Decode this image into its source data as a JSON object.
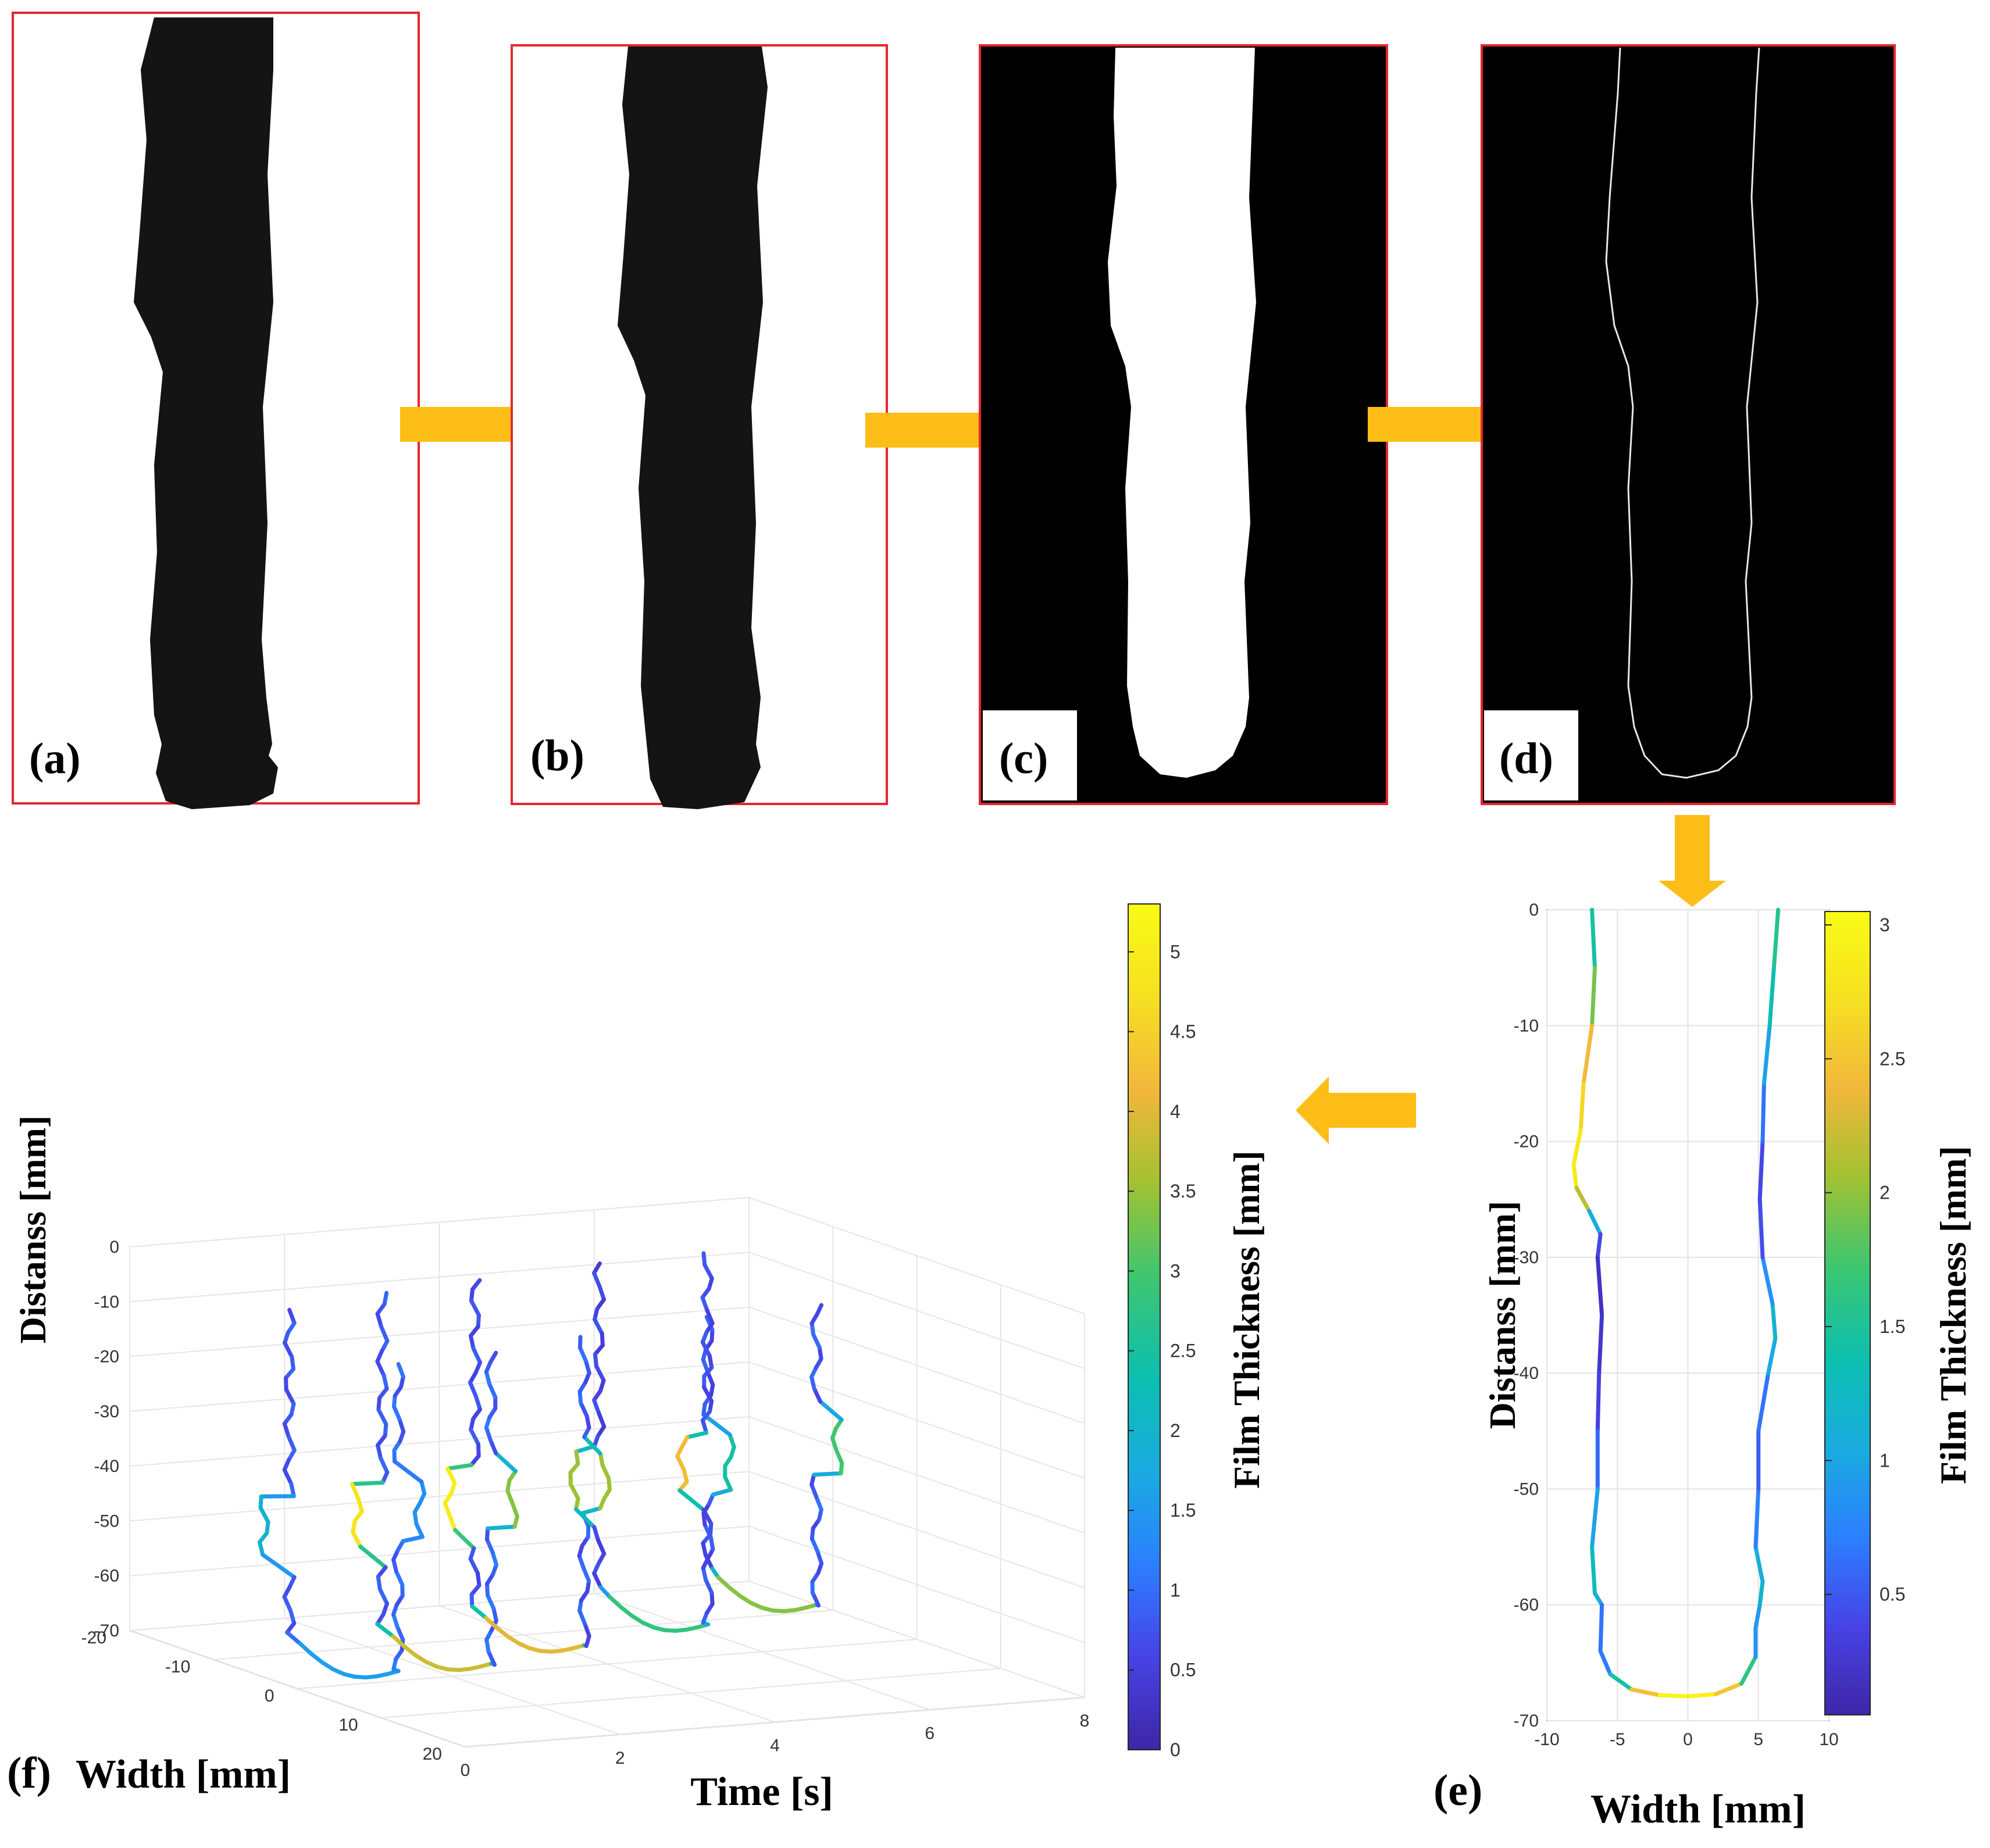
{
  "panels": {
    "a": {
      "label": "(a)"
    },
    "b": {
      "label": "(b)"
    },
    "c": {
      "label": "(c)"
    },
    "d": {
      "label": "(d)"
    },
    "e": {
      "label": "(e)"
    },
    "f": {
      "label": "(f)"
    }
  },
  "colors": {
    "frame": "#e8262b",
    "arrow": "#fdbd17",
    "dark_film": "#141414",
    "colormap": [
      "#3e26a8",
      "#4743e5",
      "#2c7fff",
      "#1aabe0",
      "#0cbfb0",
      "#3ec66f",
      "#a2c231",
      "#f2b73b",
      "#f6e021",
      "#f9fb15"
    ]
  },
  "chart_data": [
    {
      "id": "e",
      "type": "line",
      "xlabel": "Width [mm]",
      "ylabel": "Distanss [mm]",
      "xlim": [
        -10,
        10
      ],
      "ylim": [
        -70,
        0
      ],
      "xticks": [
        "-10",
        "-5",
        "0",
        "5",
        "10"
      ],
      "yticks": [
        "0",
        "-10",
        "-20",
        "-30",
        "-40",
        "-50",
        "-60",
        "-70"
      ],
      "grid": true,
      "colorbar": {
        "label": "Film Thickness [mm]",
        "range": [
          0.05,
          3.05
        ],
        "ticks": [
          "0.5",
          "1",
          "1.5",
          "2",
          "2.5",
          "3"
        ]
      },
      "profile": [
        {
          "x": -6.8,
          "y": 0,
          "t": 1.3
        },
        {
          "x": -6.6,
          "y": -5,
          "t": 1.6
        },
        {
          "x": -6.8,
          "y": -10,
          "t": 2.2
        },
        {
          "x": -7.4,
          "y": -15,
          "t": 2.6
        },
        {
          "x": -7.6,
          "y": -19,
          "t": 2.7
        },
        {
          "x": -8.1,
          "y": -22,
          "t": 2.9
        },
        {
          "x": -7.9,
          "y": -24,
          "t": 2.8
        },
        {
          "x": -7.0,
          "y": -26,
          "t": 1.5
        },
        {
          "x": -6.2,
          "y": -28,
          "t": 0.6
        },
        {
          "x": -6.4,
          "y": -30,
          "t": 0.2
        },
        {
          "x": -6.1,
          "y": -35,
          "t": 0.2
        },
        {
          "x": -6.3,
          "y": -40,
          "t": 0.3
        },
        {
          "x": -6.4,
          "y": -45,
          "t": 0.4
        },
        {
          "x": -6.4,
          "y": -50,
          "t": 0.8
        },
        {
          "x": -6.8,
          "y": -55,
          "t": 1.2
        },
        {
          "x": -6.6,
          "y": -59,
          "t": 1.4
        },
        {
          "x": -6.1,
          "y": -60,
          "t": 0.8
        },
        {
          "x": -6.2,
          "y": -64,
          "t": 0.5
        },
        {
          "x": -5.5,
          "y": -66,
          "t": 0.9
        },
        {
          "x": -4.0,
          "y": -67.3,
          "t": 2.0
        },
        {
          "x": -2.0,
          "y": -67.8,
          "t": 2.9
        },
        {
          "x": 0.0,
          "y": -67.9,
          "t": 3.0
        },
        {
          "x": 2.0,
          "y": -67.7,
          "t": 2.8
        },
        {
          "x": 3.8,
          "y": -66.8,
          "t": 2.2
        },
        {
          "x": 4.8,
          "y": -64.5,
          "t": 1.0
        },
        {
          "x": 4.8,
          "y": -62,
          "t": 0.7
        },
        {
          "x": 5.1,
          "y": -60,
          "t": 1.1
        },
        {
          "x": 5.3,
          "y": -58,
          "t": 1.3
        },
        {
          "x": 4.8,
          "y": -55,
          "t": 0.9
        },
        {
          "x": 5.0,
          "y": -50,
          "t": 0.6
        },
        {
          "x": 5.0,
          "y": -45,
          "t": 0.5
        },
        {
          "x": 5.7,
          "y": -40,
          "t": 0.8
        },
        {
          "x": 6.2,
          "y": -37,
          "t": 1.3
        },
        {
          "x": 6.0,
          "y": -34,
          "t": 1.1
        },
        {
          "x": 5.3,
          "y": -30,
          "t": 0.6
        },
        {
          "x": 5.1,
          "y": -25,
          "t": 0.3
        },
        {
          "x": 5.3,
          "y": -20,
          "t": 0.5
        },
        {
          "x": 5.4,
          "y": -15,
          "t": 0.8
        },
        {
          "x": 5.8,
          "y": -10,
          "t": 1.2
        },
        {
          "x": 6.1,
          "y": -5,
          "t": 1.5
        },
        {
          "x": 6.4,
          "y": 0,
          "t": 1.6
        }
      ]
    },
    {
      "id": "f",
      "type": "line",
      "projection": "3d",
      "xlabel": "Time [s]",
      "ylabel": "Width [mm]",
      "zlabel": "Distanss [mm]",
      "xlim": [
        0,
        8
      ],
      "ylim": [
        -20,
        20
      ],
      "zlim": [
        -70,
        0
      ],
      "xticks": [
        "0",
        "2",
        "4",
        "6",
        "8"
      ],
      "yticks": [
        "-20",
        "-10",
        "0",
        "10",
        "20"
      ],
      "zticks": [
        "0",
        "-10",
        "-20",
        "-30",
        "-40",
        "-50",
        "-60",
        "-70"
      ],
      "grid": true,
      "colorbar": {
        "label": "Film Thickness [mm]",
        "range": [
          0,
          5.3
        ],
        "ticks": [
          "0",
          "0.5",
          "1",
          "1.5",
          "2",
          "2.5",
          "3",
          "3.5",
          "4",
          "4.5",
          "5"
        ]
      },
      "series": [
        {
          "time": 0.6,
          "left_w": -6.5,
          "right_w": 6.5,
          "top_left": -5,
          "top_right": -8,
          "bottom": -68,
          "t_base": 0.4,
          "t_peak": 2.0
        },
        {
          "time": 1.8,
          "left_w": -6.5,
          "right_w": 6.5,
          "top_left": -3,
          "top_right": -7,
          "bottom": -68,
          "t_base": 0.4,
          "t_peak": 4.8
        },
        {
          "time": 3.0,
          "left_w": -6.5,
          "right_w": 6.5,
          "top_left": -2,
          "top_right": -6,
          "bottom": -66,
          "t_base": 0.3,
          "t_peak": 5.0
        },
        {
          "time": 4.6,
          "left_w": -6.5,
          "right_w": 6.5,
          "top_left": -1,
          "top_right": -4,
          "bottom": -64,
          "t_base": 0.2,
          "t_peak": 3.5
        },
        {
          "time": 6.0,
          "left_w": -6.5,
          "right_w": 6.5,
          "top_left": -1,
          "top_right": -3,
          "bottom": -62,
          "t_base": 0.3,
          "t_peak": 4.2
        }
      ]
    }
  ]
}
